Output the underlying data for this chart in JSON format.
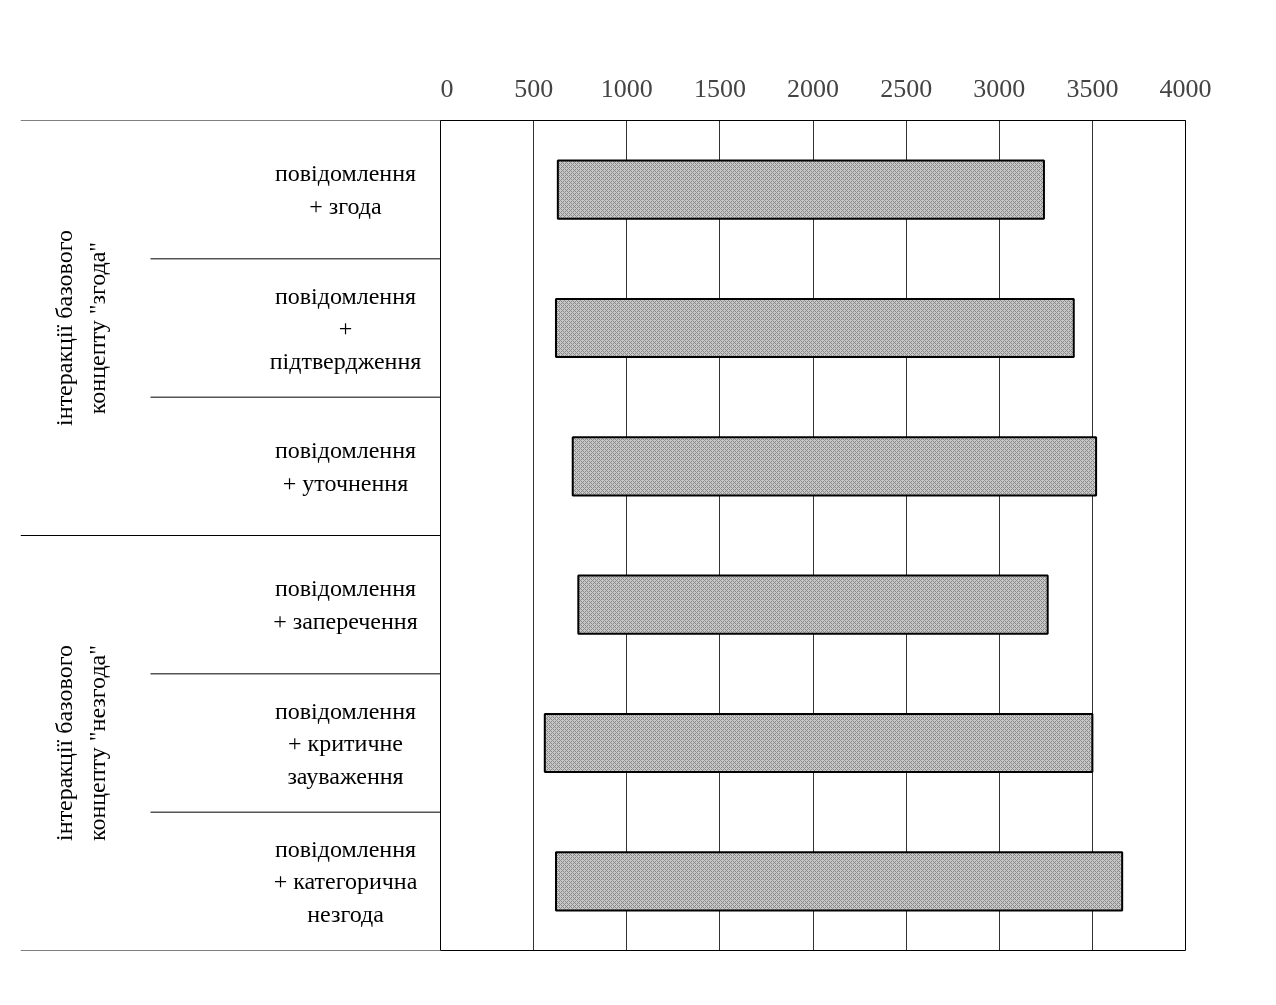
{
  "chart_data": {
    "type": "bar",
    "orientation": "horizontal",
    "categories": [
      "повідомлення\n+ згода",
      "повідомлення\n+\nпідтвердження",
      "повідомлення\n+ уточнення",
      "повідомлення\n+ заперечення",
      "повідомлення\n+ критичне\nзауваження",
      "повідомлення\n+ категорична\nнезгода"
    ],
    "base": [
      630,
      620,
      710,
      740,
      560,
      620
    ],
    "values": [
      2610,
      2780,
      2810,
      2520,
      2940,
      3040
    ],
    "color": "#c8c8c8",
    "xlim": [
      0,
      4000
    ],
    "xticks": [
      0,
      500,
      1000,
      1500,
      2000,
      2500,
      3000,
      3500,
      4000
    ],
    "grid": "x",
    "annotations": [
      "інтеракції базового\nконцепту \"згода\"",
      "інтеракції базового\nконцепту \"незгода\""
    ]
  }
}
